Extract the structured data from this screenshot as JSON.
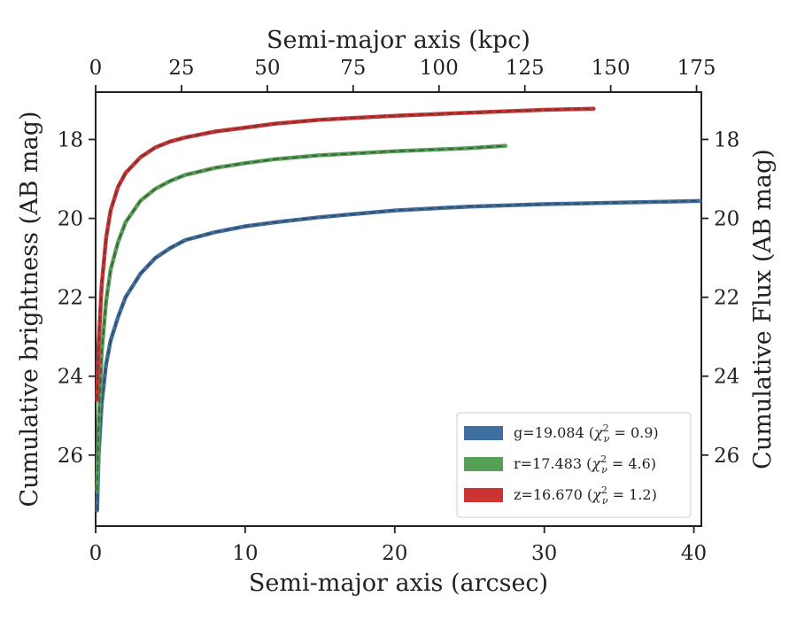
{
  "chart_data": {
    "type": "line",
    "xlabel": "Semi-major axis (arcsec)",
    "x2label": "Semi-major axis (kpc)",
    "ylabel": "Cumulative brightness (AB mag)",
    "y2label": "Cumulative Flux (AB mag)",
    "xlim": [
      0,
      40.5
    ],
    "x2lim": [
      0,
      176.4
    ],
    "ylim": [
      27.8,
      16.8
    ],
    "y_inverted": true,
    "x_ticks": [
      "0",
      "10",
      "20",
      "30",
      "40"
    ],
    "x2_ticks": [
      "0",
      "25",
      "50",
      "75",
      "100",
      "125",
      "150",
      "175"
    ],
    "y_ticks": [
      "18",
      "20",
      "22",
      "24",
      "26"
    ],
    "y2_ticks": [
      "18",
      "20",
      "22",
      "24",
      "26"
    ],
    "legend_position": "lower-right",
    "model_line_style": "dashed dark gray overlay",
    "series": [
      {
        "name": "g=19.084 (χ²ν = 0.9)",
        "label_text": "g=19.084",
        "chi": "0.9",
        "color": "#3f6fa0",
        "x": [
          0.1,
          0.2,
          0.4,
          0.7,
          1.0,
          1.5,
          2.0,
          3.0,
          4.0,
          5.0,
          6.0,
          8.0,
          10.0,
          12.0,
          15.0,
          20.0,
          25.0,
          30.0,
          35.0,
          40.4
        ],
        "y": [
          27.4,
          26.0,
          24.7,
          23.7,
          23.1,
          22.5,
          22.0,
          21.4,
          21.0,
          20.75,
          20.55,
          20.35,
          20.2,
          20.1,
          19.97,
          19.8,
          19.7,
          19.64,
          19.6,
          19.56
        ]
      },
      {
        "name": "r=17.483 (χ²ν = 4.6)",
        "label_text": "r=17.483",
        "chi": "4.6",
        "color": "#55a055",
        "x": [
          0.1,
          0.2,
          0.4,
          0.7,
          1.0,
          1.5,
          2.0,
          3.0,
          4.0,
          5.0,
          6.0,
          8.0,
          10.0,
          12.0,
          15.0,
          20.0,
          25.0,
          27.4
        ],
        "y": [
          26.9,
          25.2,
          23.4,
          22.1,
          21.3,
          20.6,
          20.1,
          19.55,
          19.25,
          19.05,
          18.9,
          18.72,
          18.6,
          18.5,
          18.4,
          18.3,
          18.22,
          18.16
        ]
      },
      {
        "name": "z=16.670 (χ²ν = 1.2)",
        "label_text": "z=16.670",
        "chi": "1.2",
        "color": "#cc3333",
        "x": [
          0.1,
          0.2,
          0.4,
          0.7,
          1.0,
          1.5,
          2.0,
          3.0,
          4.0,
          5.0,
          6.0,
          8.0,
          10.0,
          12.0,
          15.0,
          20.0,
          25.0,
          30.0,
          33.3
        ],
        "y": [
          24.6,
          23.2,
          21.7,
          20.5,
          19.8,
          19.2,
          18.85,
          18.45,
          18.2,
          18.05,
          17.95,
          17.8,
          17.7,
          17.6,
          17.5,
          17.4,
          17.32,
          17.25,
          17.22
        ]
      }
    ]
  }
}
